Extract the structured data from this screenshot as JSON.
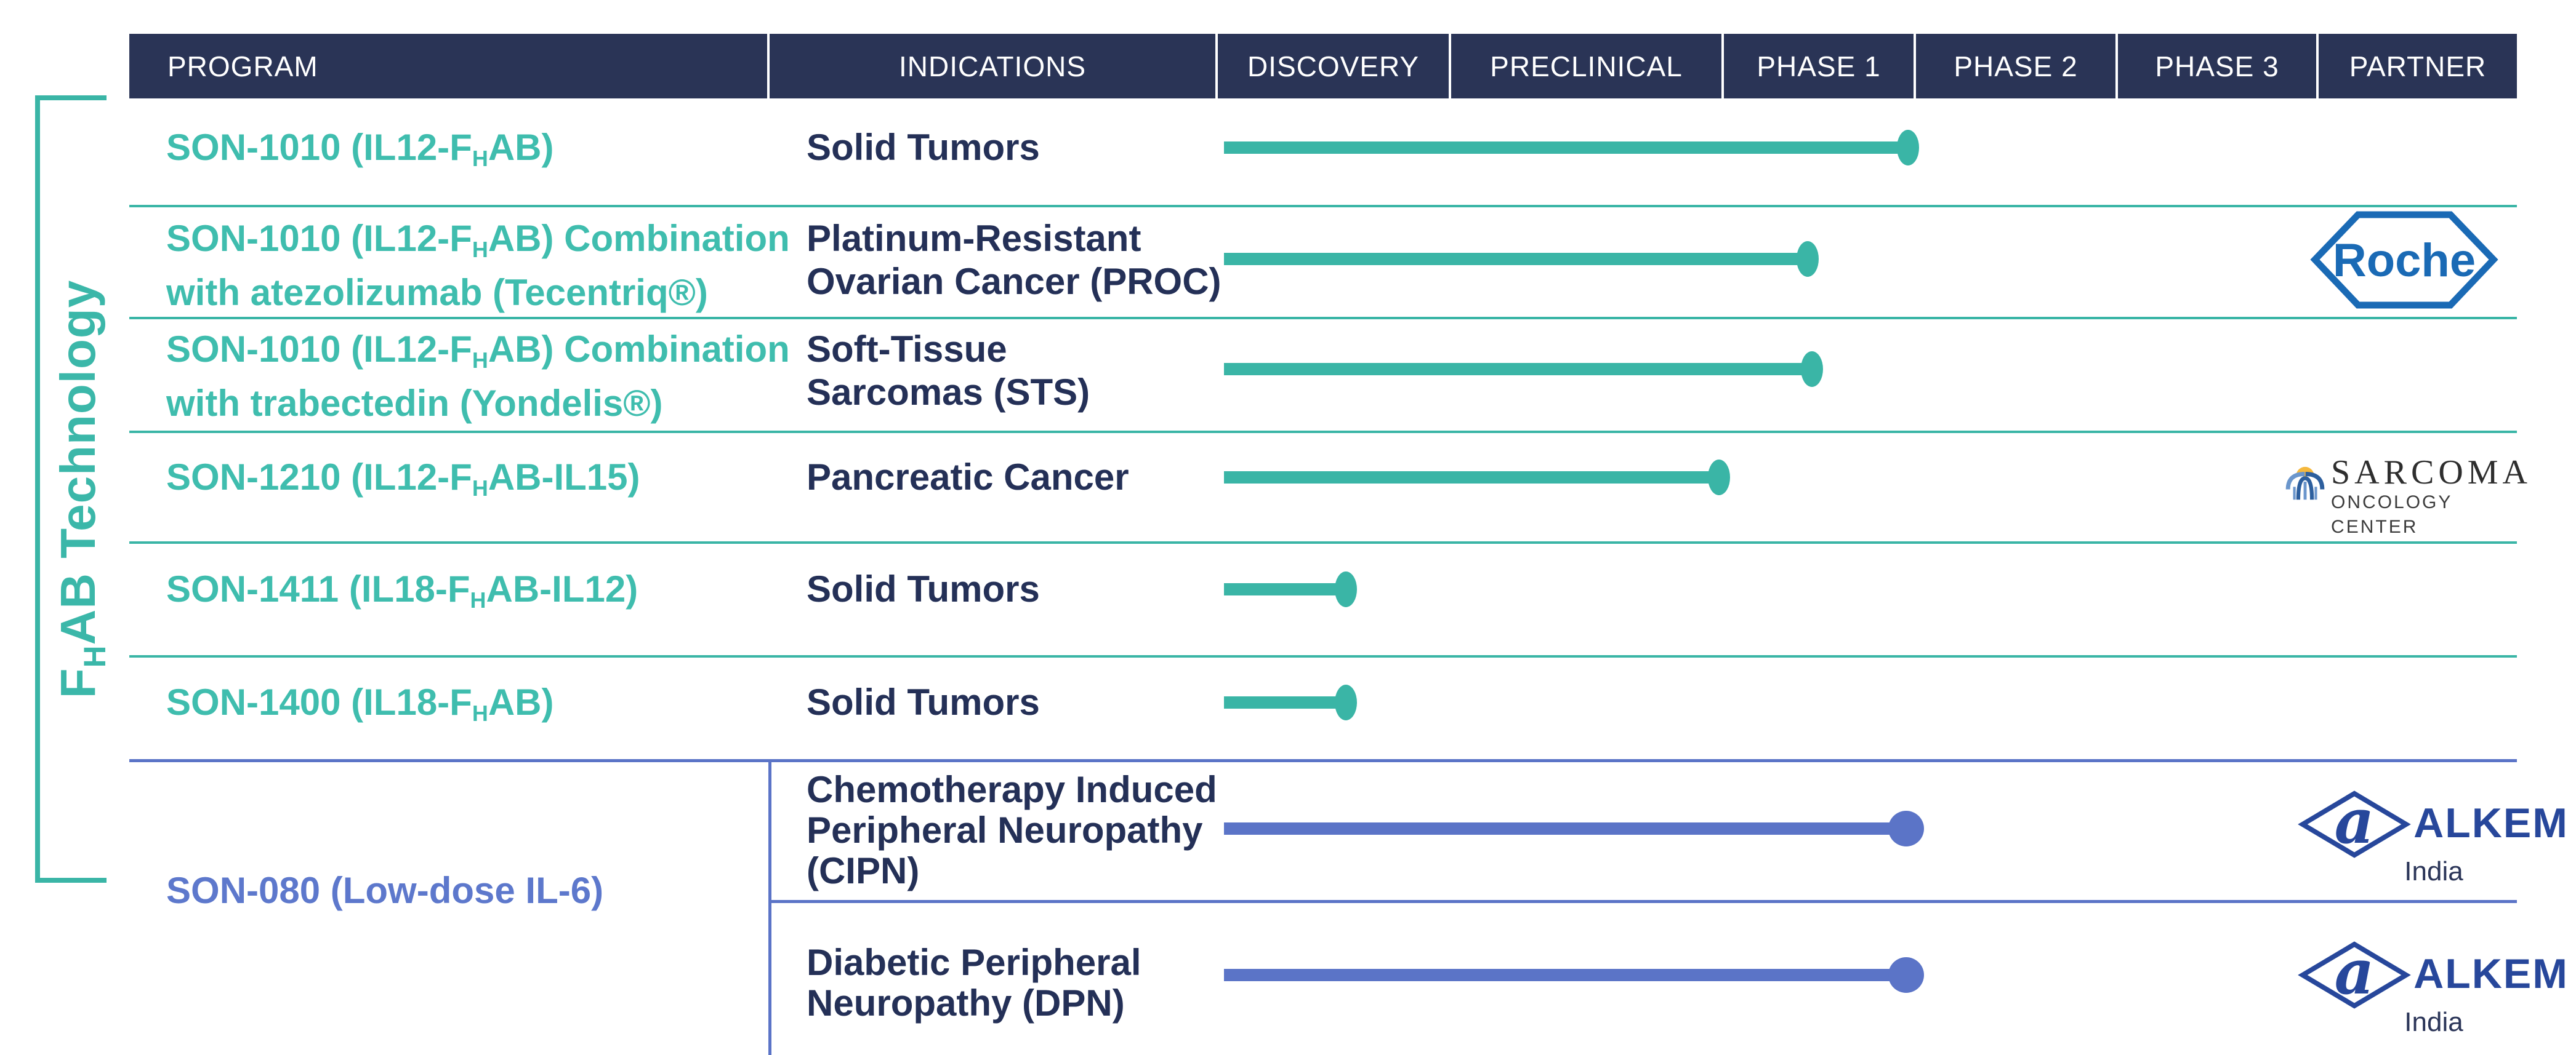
{
  "palette": {
    "teal_line": "#3ab5a6",
    "teal_text": "#3fbdae",
    "header_bg": "#2a3456",
    "indication_text": "#243057",
    "blue_line": "#5b74c7",
    "blue_text": "#5d78cc",
    "roche_blue": "#1a6ab5",
    "alkem_blue": "#27479b",
    "sarcoma_yellow": "#f5b83d",
    "sarcoma_blue_dark": "#2d5f9e",
    "sarcoma_blue_light": "#6b96cc"
  },
  "side_label": {
    "pre": "F",
    "sub": "H",
    "post": "AB Technology"
  },
  "header": {
    "columns": [
      "PROGRAM",
      "INDICATIONS",
      "DISCOVERY",
      "PRECLINICAL",
      "PHASE 1",
      "PHASE 2",
      "PHASE 3",
      "PARTNER"
    ]
  },
  "phases": [
    "DISCOVERY",
    "PRECLINICAL",
    "PHASE 1",
    "PHASE 2",
    "PHASE 3"
  ],
  "rows": [
    {
      "program_lines": [
        {
          "pre": "SON-1010 (IL12-F",
          "sub": "H",
          "post": "AB)"
        }
      ],
      "ind": [
        "Solid Tumors"
      ],
      "progress": {
        "value": 2.97,
        "label": "End of Phase 1"
      },
      "color": "teal",
      "partner": ""
    },
    {
      "program_lines": [
        {
          "pre": "SON-1010 (IL12-F",
          "sub": "H",
          "post": "AB) Combination"
        },
        {
          "pre": "with atezolizumab (Tecentriq®)",
          "sub": "",
          "post": ""
        }
      ],
      "ind": [
        "Platinum-Resistant",
        "Ovarian Cancer (PROC)"
      ],
      "progress": {
        "value": 2.45,
        "label": "Mid Phase 1"
      },
      "color": "teal",
      "partner": "Roche"
    },
    {
      "program_lines": [
        {
          "pre": "SON-1010 (IL12-F",
          "sub": "H",
          "post": "AB) Combination"
        },
        {
          "pre": "with trabectedin (Yondelis®)",
          "sub": "",
          "post": ""
        }
      ],
      "ind": [
        "Soft-Tissue",
        "Sarcomas (STS)"
      ],
      "progress": {
        "value": 2.47,
        "label": "Mid Phase 1"
      },
      "color": "teal",
      "partner": ""
    },
    {
      "program_lines": [
        {
          "pre": "SON-1210 (IL12-F",
          "sub": "H",
          "post": "AB-IL15)"
        }
      ],
      "ind": [
        "Pancreatic Cancer"
      ],
      "progress": {
        "value": 1.99,
        "label": "End of Preclinical"
      },
      "color": "teal",
      "partner": "Sarcoma Oncology Center"
    },
    {
      "program_lines": [
        {
          "pre": "SON-1411 (IL18-F",
          "sub": "H",
          "post": "AB-IL12)"
        }
      ],
      "ind": [
        "Solid Tumors"
      ],
      "progress": {
        "value": 0.56,
        "label": "Discovery"
      },
      "color": "teal",
      "partner": ""
    },
    {
      "program_lines": [
        {
          "pre": "SON-1400 (IL18-F",
          "sub": "H",
          "post": "AB)"
        }
      ],
      "ind": [
        "Solid Tumors"
      ],
      "progress": {
        "value": 0.56,
        "label": "Discovery"
      },
      "color": "teal",
      "partner": ""
    },
    {
      "program_lines": [
        {
          "pre": "SON-080 (Low-dose IL-6)",
          "sub": "",
          "post": ""
        }
      ],
      "ind": [
        "Chemotherapy Induced",
        "Peripheral Neuropathy",
        "(CIPN)"
      ],
      "progress": {
        "value": 2.96,
        "label": "End of Phase 1"
      },
      "color": "blue",
      "partner": "Alkem India"
    },
    {
      "program_lines": [],
      "ind": [
        "Diabetic Peripheral",
        "Neuropathy (DPN)"
      ],
      "progress": {
        "value": 2.96,
        "label": "End of Phase 1"
      },
      "color": "blue",
      "partner": "Alkem India"
    }
  ],
  "partners": {
    "roche": {
      "label": "Roche"
    },
    "sarcoma": {
      "line1": "SARCOMA",
      "line2": "ONCOLOGY CENTER"
    },
    "alkem": {
      "mark": "a",
      "word": "ALKEM",
      "sub": "India"
    }
  }
}
